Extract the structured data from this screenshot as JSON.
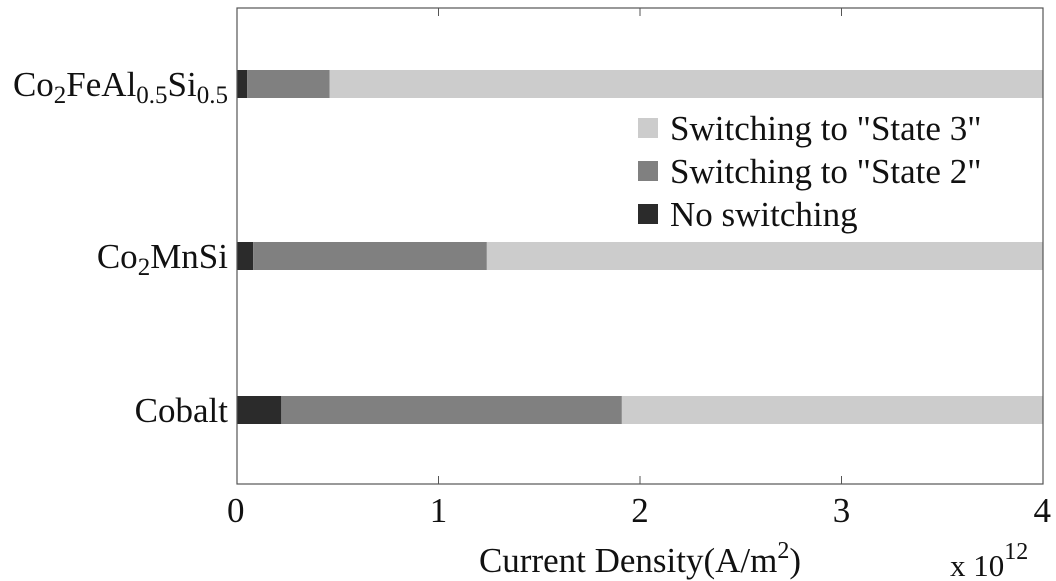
{
  "chart_data": {
    "type": "bar",
    "orientation": "horizontal",
    "stacked": true,
    "categories": [
      {
        "base": "Co",
        "parts": [
          [
            "Co",
            ""
          ],
          [
            "2",
            "sub"
          ],
          [
            "FeAl",
            ""
          ],
          [
            "0.5",
            "sub"
          ],
          [
            "Si",
            ""
          ],
          [
            "0.5",
            "sub"
          ]
        ],
        "text": "Co2FeAl0.5Si0.5"
      },
      {
        "base": "Co",
        "parts": [
          [
            "Co",
            ""
          ],
          [
            "2",
            "sub"
          ],
          [
            "MnSi",
            ""
          ]
        ],
        "text": "Co2MnSi"
      },
      {
        "base": "Cobalt",
        "parts": [
          [
            "Cobalt",
            ""
          ]
        ],
        "text": "Cobalt"
      }
    ],
    "series": [
      {
        "name": "No switching",
        "color": "#2b2b2b",
        "ranges": [
          [
            0,
            0.05
          ],
          [
            0,
            0.08
          ],
          [
            0,
            0.22
          ]
        ]
      },
      {
        "name": "Switching to \"State 2\"",
        "color": "#808080",
        "ranges": [
          [
            0.05,
            0.46
          ],
          [
            0.08,
            1.24
          ],
          [
            0.22,
            1.91
          ]
        ]
      },
      {
        "name": "Switching to \"State 3\"",
        "color": "#cccccc",
        "ranges": [
          [
            0.46,
            4
          ],
          [
            1.24,
            4
          ],
          [
            1.91,
            4
          ]
        ]
      }
    ],
    "legend_order": [
      "Switching to \"State 3\"",
      "Switching to \"State 2\"",
      "No switching"
    ],
    "legend_position": "upper-right",
    "xlim": [
      0,
      4
    ],
    "xticks": [
      "0",
      "1",
      "2",
      "3",
      "4"
    ],
    "xlabel": "Current Density(A/m",
    "xlabel_sup": "2",
    "xlabel_tail": ")",
    "exponent_base": "x 10",
    "exponent_power": "12",
    "grid": false
  }
}
